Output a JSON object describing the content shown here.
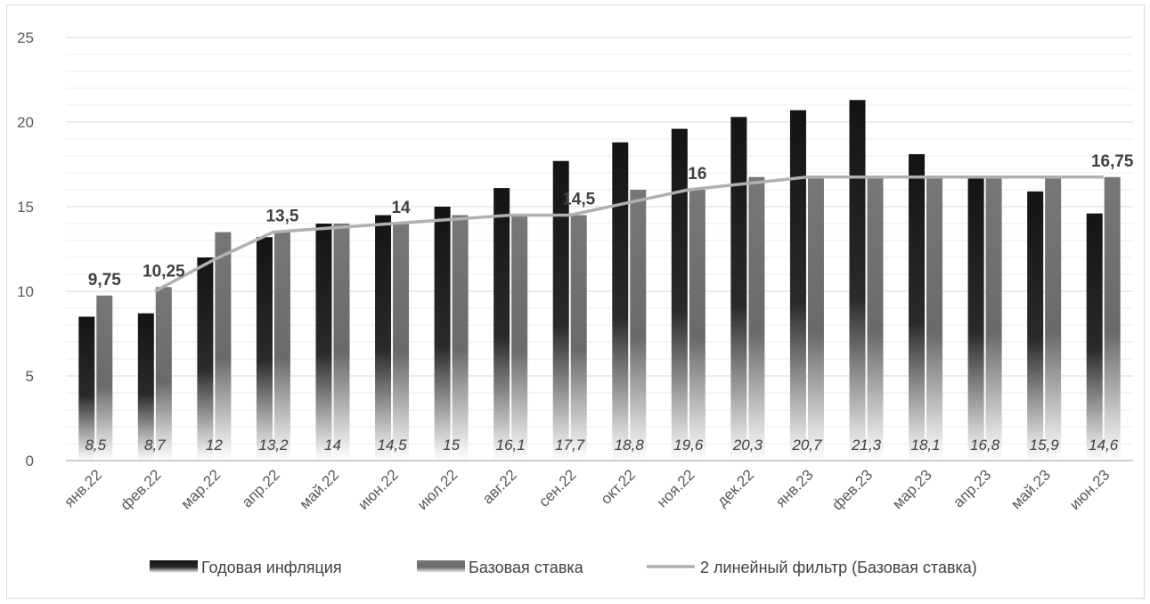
{
  "chart_data": {
    "type": "bar",
    "title": "",
    "xlabel": "",
    "ylabel": "",
    "ylim": [
      0,
      25
    ],
    "yticks": [
      0,
      5,
      10,
      15,
      20,
      25
    ],
    "grid": true,
    "legend_position": "bottom",
    "categories": [
      "янв.22",
      "фев.22",
      "мар.22",
      "апр.22",
      "май.22",
      "июн.22",
      "июл.22",
      "авг.22",
      "сен.22",
      "окт.22",
      "ноя.22",
      "дек.22",
      "янв.23",
      "фев.23",
      "мар.23",
      "апр.23",
      "май.23",
      "июн.23"
    ],
    "series": [
      {
        "name": "Годовая инфляция",
        "kind": "bar",
        "color": "#1a1a1a",
        "values": [
          8.5,
          8.7,
          12,
          13.2,
          14,
          14.5,
          15,
          16.1,
          17.7,
          18.8,
          19.6,
          20.3,
          20.7,
          21.3,
          18.1,
          16.8,
          15.9,
          14.6
        ],
        "data_labels": [
          "8,5",
          "8,7",
          "12",
          "13,2",
          "14",
          "14,5",
          "15",
          "16,1",
          "17,7",
          "18,8",
          "19,6",
          "20,3",
          "20,7",
          "21,3",
          "18,1",
          "16,8",
          "15,9",
          "14,6"
        ]
      },
      {
        "name": "Базовая ставка",
        "kind": "bar",
        "color": "#7a7a7a",
        "values": [
          9.75,
          10.25,
          13.5,
          13.5,
          14,
          14,
          14.5,
          14.5,
          14.5,
          16,
          16,
          16.75,
          16.75,
          16.75,
          16.75,
          16.75,
          16.75,
          16.75
        ]
      },
      {
        "name": "2 линейный фильтр (Базовая ставка)",
        "kind": "line",
        "color": "#b0b0b0",
        "values": [
          null,
          10,
          11.875,
          13.5,
          13.75,
          14,
          14.25,
          14.5,
          14.5,
          15.25,
          16,
          16.375,
          16.75,
          16.75,
          16.75,
          16.75,
          16.75,
          16.75
        ]
      }
    ],
    "annotations": [
      {
        "category": "янв.22",
        "value": 9.75,
        "text": "9,75"
      },
      {
        "category": "фев.22",
        "value": 10.25,
        "text": "10,25"
      },
      {
        "category": "апр.22",
        "value": 13.5,
        "text": "13,5"
      },
      {
        "category": "июн.22",
        "value": 14,
        "text": "14"
      },
      {
        "category": "сен.22",
        "value": 14.5,
        "text": "14,5"
      },
      {
        "category": "ноя.22",
        "value": 16,
        "text": "16"
      },
      {
        "category": "июн.23",
        "value": 16.75,
        "text": "16,75"
      }
    ]
  }
}
